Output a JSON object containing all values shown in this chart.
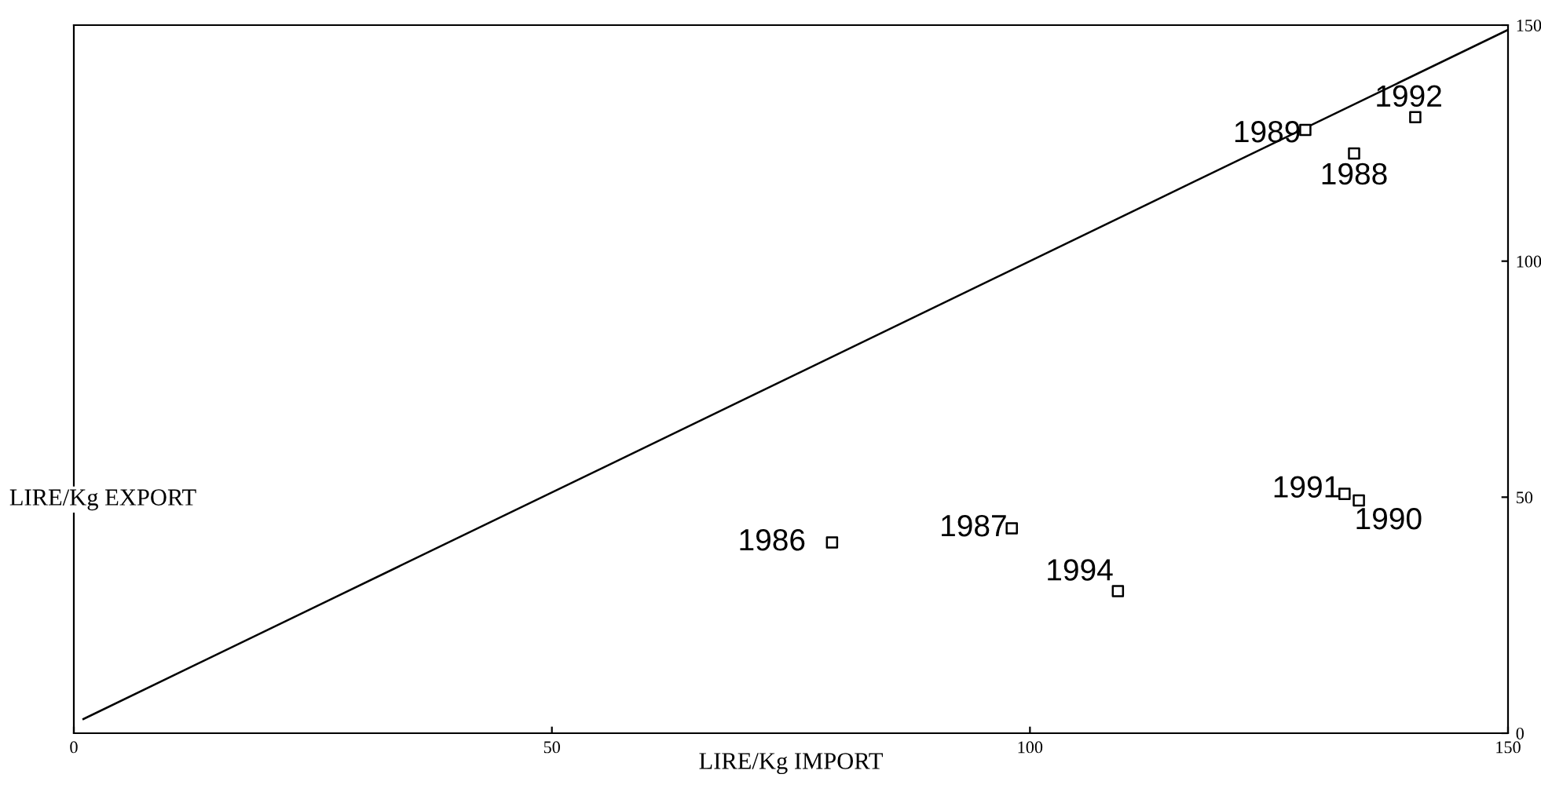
{
  "chart_data": {
    "type": "scatter",
    "xlabel": "LIRE/Kg IMPORT",
    "ylabel": "LIRE/Kg EXPORT",
    "xlim": [
      0,
      150
    ],
    "ylim": [
      0,
      150
    ],
    "xticks": [
      0,
      50,
      100,
      150
    ],
    "yticks": [
      0,
      50,
      100,
      150
    ],
    "grid": false,
    "series": [
      {
        "marker": "square",
        "color": "#000000",
        "x": [
          79.3,
          98.1,
          133.9,
          128.8,
          134.4,
          132.9,
          140.3,
          109.2
        ],
        "values": [
          40.4,
          43.4,
          122.8,
          127.8,
          49.3,
          50.7,
          130.5,
          30.1
        ]
      },
      {
        "type": "line",
        "marker": "none",
        "color": "#000000",
        "x": [
          1,
          150
        ],
        "values": [
          3,
          149
        ]
      }
    ],
    "annotations": [
      {
        "text": "1986",
        "x": 79.3,
        "y": 40.4
      },
      {
        "text": "1987",
        "x": 98.1,
        "y": 43.4
      },
      {
        "text": "1988",
        "x": 133.9,
        "y": 122.8
      },
      {
        "text": "1989",
        "x": 128.8,
        "y": 127.8
      },
      {
        "text": "1990",
        "x": 134.4,
        "y": 49.3
      },
      {
        "text": "1991",
        "x": 132.9,
        "y": 50.7
      },
      {
        "text": "1992",
        "x": 140.3,
        "y": 130.5
      },
      {
        "text": "1994",
        "x": 109.2,
        "y": 30.1
      }
    ]
  }
}
